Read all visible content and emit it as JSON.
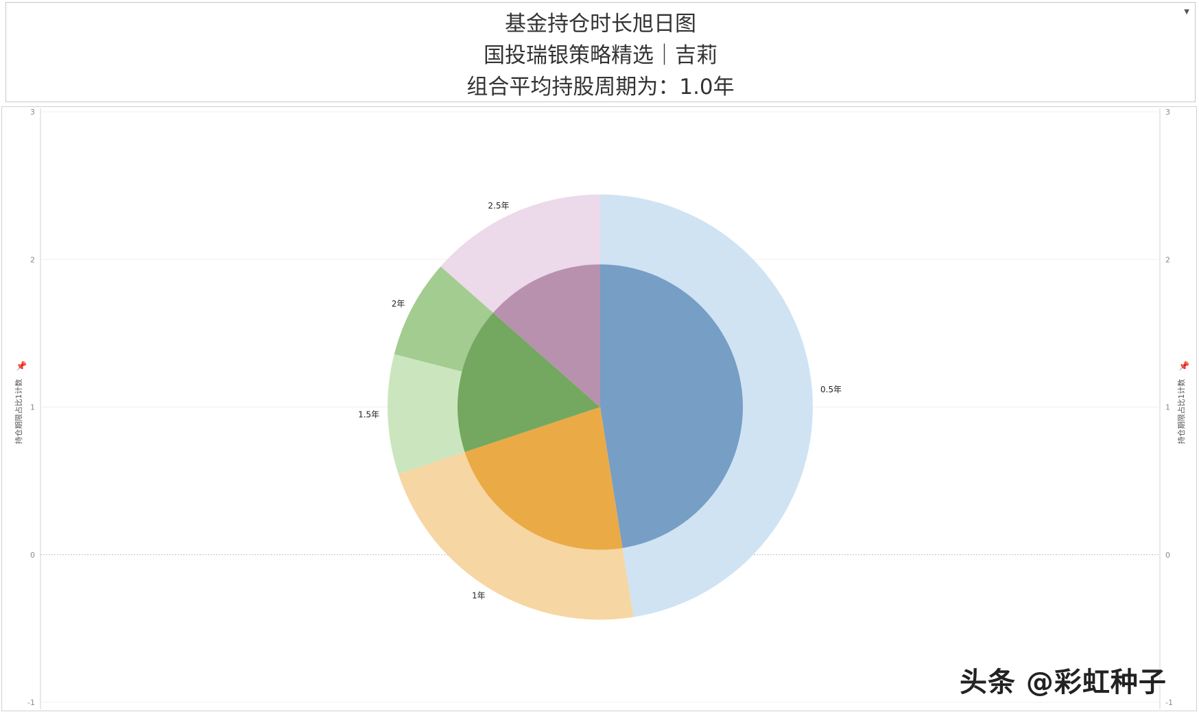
{
  "header": {
    "title_lines": [
      "基金持仓时长旭日图",
      "国投瑞银策略精选｜吉莉",
      "组合平均持股周期为：1.0年"
    ]
  },
  "watermark": "头条 @彩虹种子",
  "chart_data": {
    "type": "pie",
    "subtype": "two-ring sunburst",
    "title": "基金持仓时长旭日图",
    "ylabel": "持仓期限占比1计数",
    "ylim": [
      -1,
      3
    ],
    "yticks": [
      "3",
      "2",
      "1",
      "0",
      "-1"
    ],
    "grid": true,
    "outer_ring": {
      "categories": [
        "0.5年",
        "1年",
        "1.5年",
        "2年",
        "2.5年"
      ],
      "values": [
        0.475,
        0.224,
        0.091,
        0.075,
        0.135
      ],
      "colors": [
        "#cfe3f3",
        "#f6d6a2",
        "#cbe6bf",
        "#a3cc90",
        "#ecd9ea"
      ]
    },
    "inner_ring": {
      "values": [
        0.475,
        0.224,
        0.166,
        0.135
      ],
      "colors": [
        "#779ec5",
        "#eaaa46",
        "#74a860",
        "#b891ae"
      ]
    }
  }
}
